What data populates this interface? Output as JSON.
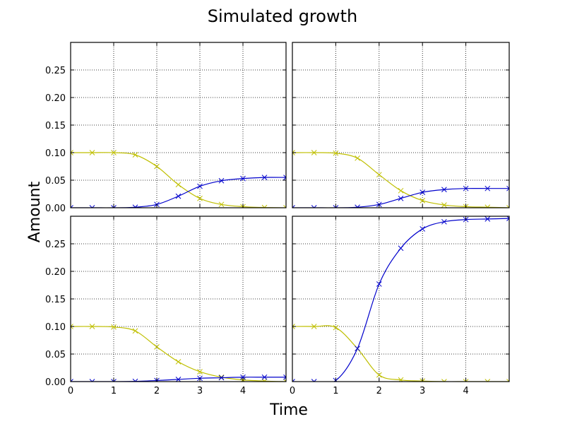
{
  "figure": {
    "title": "Simulated growth",
    "xlabel": "Time",
    "ylabel": "Amount"
  },
  "colors": {
    "series_yellow": "#bfbf00",
    "series_blue": "#0000cc",
    "grid": "#000000",
    "axes": "#000000"
  },
  "chart_data": [
    {
      "type": "line",
      "panel": "top-left",
      "xlim": [
        0,
        5
      ],
      "ylim": [
        0,
        0.3
      ],
      "x_ticks": [
        0,
        1,
        2,
        3,
        4
      ],
      "y_ticks": [
        0.0,
        0.05,
        0.1,
        0.15,
        0.2,
        0.25
      ],
      "show_x_tick_labels": false,
      "show_y_tick_labels": true,
      "grid": true,
      "x": [
        0,
        0.5,
        1,
        1.5,
        2,
        2.5,
        3,
        3.5,
        4,
        4.5,
        5
      ],
      "series": [
        {
          "color": "#bfbf00",
          "marker": "x",
          "values": [
            0.1,
            0.1,
            0.1,
            0.096,
            0.075,
            0.042,
            0.017,
            0.006,
            0.002,
            0.0005,
            0.0
          ]
        },
        {
          "color": "#0000cc",
          "marker": "x",
          "values": [
            0.0,
            0.0,
            0.0,
            0.001,
            0.006,
            0.021,
            0.039,
            0.049,
            0.053,
            0.055,
            0.055
          ]
        }
      ]
    },
    {
      "type": "line",
      "panel": "top-right",
      "xlim": [
        0,
        5
      ],
      "ylim": [
        0,
        0.3
      ],
      "x_ticks": [
        0,
        1,
        2,
        3,
        4
      ],
      "y_ticks": [
        0.0,
        0.05,
        0.1,
        0.15,
        0.2,
        0.25
      ],
      "show_x_tick_labels": false,
      "show_y_tick_labels": false,
      "grid": true,
      "x": [
        0,
        0.5,
        1,
        1.5,
        2,
        2.5,
        3,
        3.5,
        4,
        4.5,
        5
      ],
      "series": [
        {
          "color": "#bfbf00",
          "marker": "x",
          "values": [
            0.1,
            0.1,
            0.099,
            0.09,
            0.06,
            0.031,
            0.013,
            0.005,
            0.002,
            0.001,
            0.0
          ]
        },
        {
          "color": "#0000cc",
          "marker": "x",
          "values": [
            0.0,
            0.0,
            0.0,
            0.001,
            0.006,
            0.017,
            0.028,
            0.033,
            0.035,
            0.035,
            0.035
          ]
        }
      ]
    },
    {
      "type": "line",
      "panel": "bottom-left",
      "xlim": [
        0,
        5
      ],
      "ylim": [
        0,
        0.3
      ],
      "x_ticks": [
        0,
        1,
        2,
        3,
        4
      ],
      "y_ticks": [
        0.0,
        0.05,
        0.1,
        0.15,
        0.2,
        0.25
      ],
      "show_x_tick_labels": true,
      "show_y_tick_labels": true,
      "grid": true,
      "x": [
        0,
        0.5,
        1,
        1.5,
        2,
        2.5,
        3,
        3.5,
        4,
        4.5,
        5
      ],
      "series": [
        {
          "color": "#bfbf00",
          "marker": "x",
          "values": [
            0.1,
            0.1,
            0.099,
            0.092,
            0.063,
            0.036,
            0.018,
            0.008,
            0.003,
            0.001,
            0.0
          ]
        },
        {
          "color": "#0000cc",
          "marker": "x",
          "values": [
            0.0,
            0.0,
            0.0,
            0.0005,
            0.002,
            0.004,
            0.006,
            0.007,
            0.008,
            0.008,
            0.008
          ]
        }
      ]
    },
    {
      "type": "line",
      "panel": "bottom-right",
      "xlim": [
        0,
        5
      ],
      "ylim": [
        0,
        0.3
      ],
      "x_ticks": [
        0,
        1,
        2,
        3,
        4
      ],
      "y_ticks": [
        0.0,
        0.05,
        0.1,
        0.15,
        0.2,
        0.25
      ],
      "show_x_tick_labels": true,
      "show_y_tick_labels": false,
      "grid": true,
      "x": [
        0,
        0.5,
        1,
        1.5,
        2,
        2.5,
        3,
        3.5,
        4,
        4.5,
        5
      ],
      "series": [
        {
          "color": "#bfbf00",
          "marker": "x",
          "values": [
            0.1,
            0.1,
            0.098,
            0.06,
            0.012,
            0.003,
            0.001,
            0.0,
            0.0,
            0.0,
            0.0
          ]
        },
        {
          "color": "#0000cc",
          "marker": "x",
          "values": [
            0.0,
            0.0,
            0.002,
            0.06,
            0.177,
            0.242,
            0.277,
            0.29,
            0.294,
            0.295,
            0.296
          ]
        }
      ]
    }
  ]
}
